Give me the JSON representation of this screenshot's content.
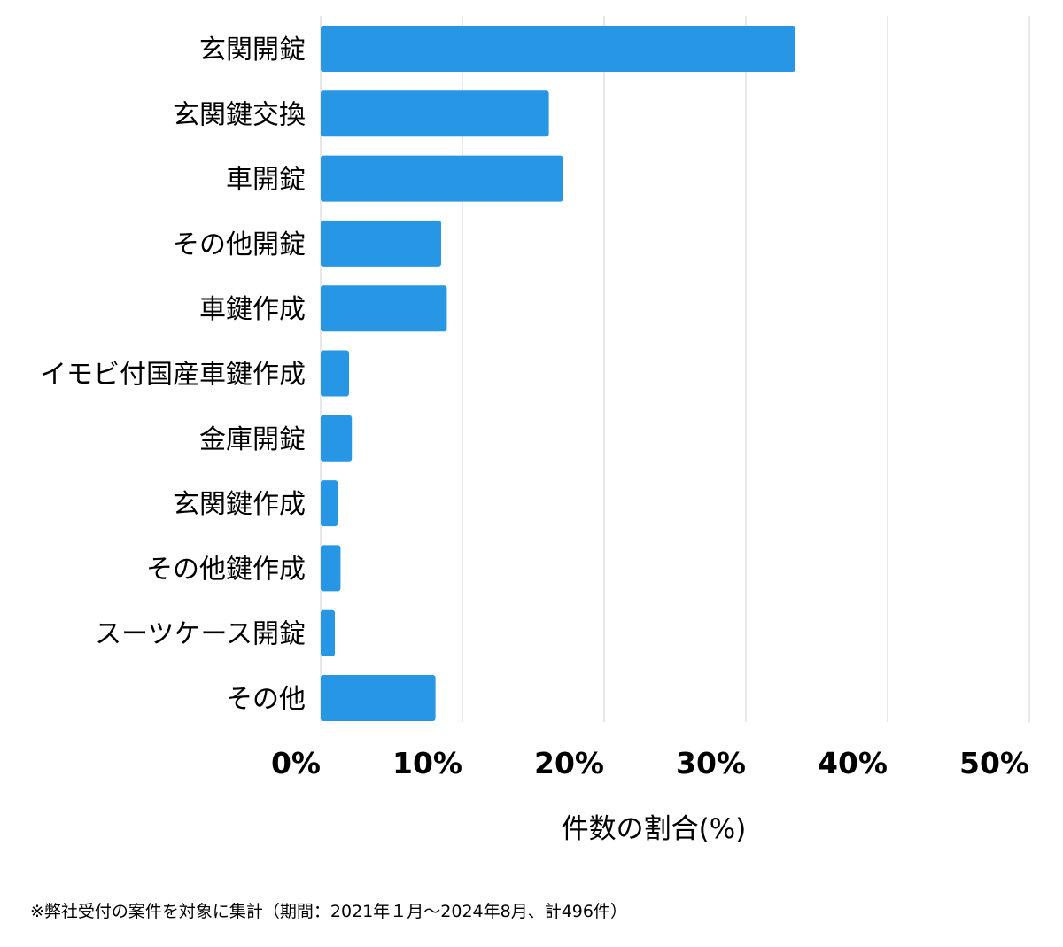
{
  "chart_data": {
    "type": "bar",
    "orientation": "horizontal",
    "categories": [
      "玄関開錠",
      "玄関鍵交換",
      "車開錠",
      "その他開錠",
      "車鍵作成",
      "イモビ付国産車鍵作成",
      "金庫開錠",
      "玄関鍵作成",
      "その他鍵作成",
      "スーツケース開錠",
      "その他"
    ],
    "values": [
      33.5,
      16.1,
      17.1,
      8.5,
      8.9,
      2.0,
      2.2,
      1.2,
      1.4,
      1.0,
      8.1
    ],
    "xlim": [
      0,
      50
    ],
    "xticks": [
      0,
      10,
      20,
      30,
      40,
      50
    ],
    "xtick_labels": [
      "0%",
      "10%",
      "20%",
      "30%",
      "40%",
      "50%"
    ],
    "xlabel": "件数の割合(%)",
    "ylabel": "",
    "grid": "vertical",
    "bar_color": "#2796E4",
    "grid_color": "#d9d9d9"
  },
  "footnote": "※弊社受付の案件を対象に集計（期間：2021年１月〜2024年8月、計496件）"
}
